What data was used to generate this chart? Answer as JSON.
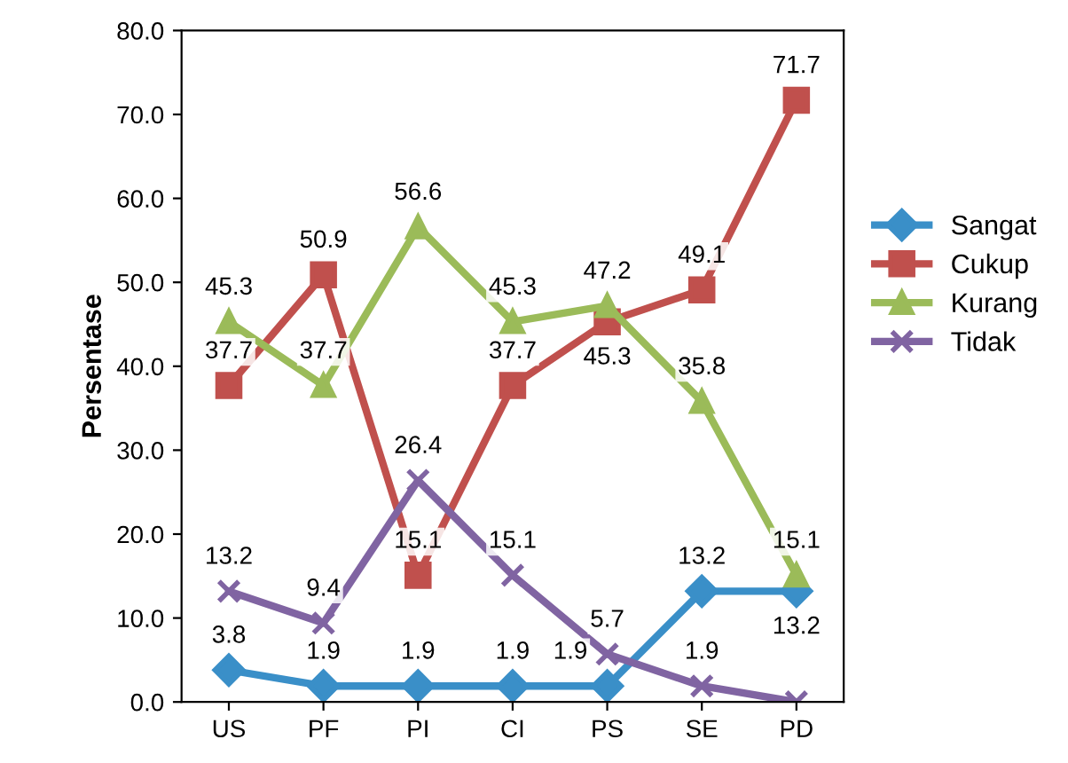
{
  "chart_data": {
    "type": "line",
    "ylabel": "Persentase",
    "categories": [
      "US",
      "PF",
      "PI",
      "CI",
      "PS",
      "SE",
      "PD"
    ],
    "ylim": [
      0,
      80
    ],
    "yticks": [
      {
        "value": 0,
        "label": "0.0"
      },
      {
        "value": 10,
        "label": "10.0"
      },
      {
        "value": 20,
        "label": "20.0"
      },
      {
        "value": 30,
        "label": "30.0"
      },
      {
        "value": 40,
        "label": "40.0"
      },
      {
        "value": 50,
        "label": "50.0"
      },
      {
        "value": 60,
        "label": "60.0"
      },
      {
        "value": 70,
        "label": "70.0"
      },
      {
        "value": 80,
        "label": "80.0"
      }
    ],
    "grid": false,
    "legend": "right",
    "series": [
      {
        "name": "Sangat",
        "color": "#3a8fc8",
        "marker": "diamond",
        "values": [
          3.8,
          1.9,
          1.9,
          1.9,
          1.9,
          13.2,
          13.2
        ],
        "value_labels": [
          "3.8",
          "1.9",
          "1.9",
          "1.9",
          "1.9",
          "13.2",
          "13.2"
        ]
      },
      {
        "name": "Cukup",
        "color": "#c0504d",
        "marker": "square",
        "values": [
          37.7,
          50.9,
          15.1,
          37.7,
          45.3,
          49.1,
          71.7
        ],
        "value_labels": [
          "37.7",
          "50.9",
          "15.1",
          "37.7",
          "45.3",
          "49.1",
          "71.7"
        ]
      },
      {
        "name": "Kurang",
        "color": "#9bbb59",
        "marker": "triangle",
        "values": [
          45.3,
          37.7,
          56.6,
          45.3,
          47.2,
          35.8,
          15.1
        ],
        "value_labels": [
          "45.3",
          "37.7",
          "56.6",
          "45.3",
          "47.2",
          "35.8",
          "15.1"
        ]
      },
      {
        "name": "Tidak",
        "color": "#8064a2",
        "marker": "cross",
        "values": [
          13.2,
          9.4,
          26.4,
          15.1,
          5.7,
          1.9,
          0.0
        ],
        "value_labels": [
          "13.2",
          "9.4",
          "26.4",
          "15.1",
          "5.7",
          "1.9",
          null
        ]
      }
    ]
  }
}
